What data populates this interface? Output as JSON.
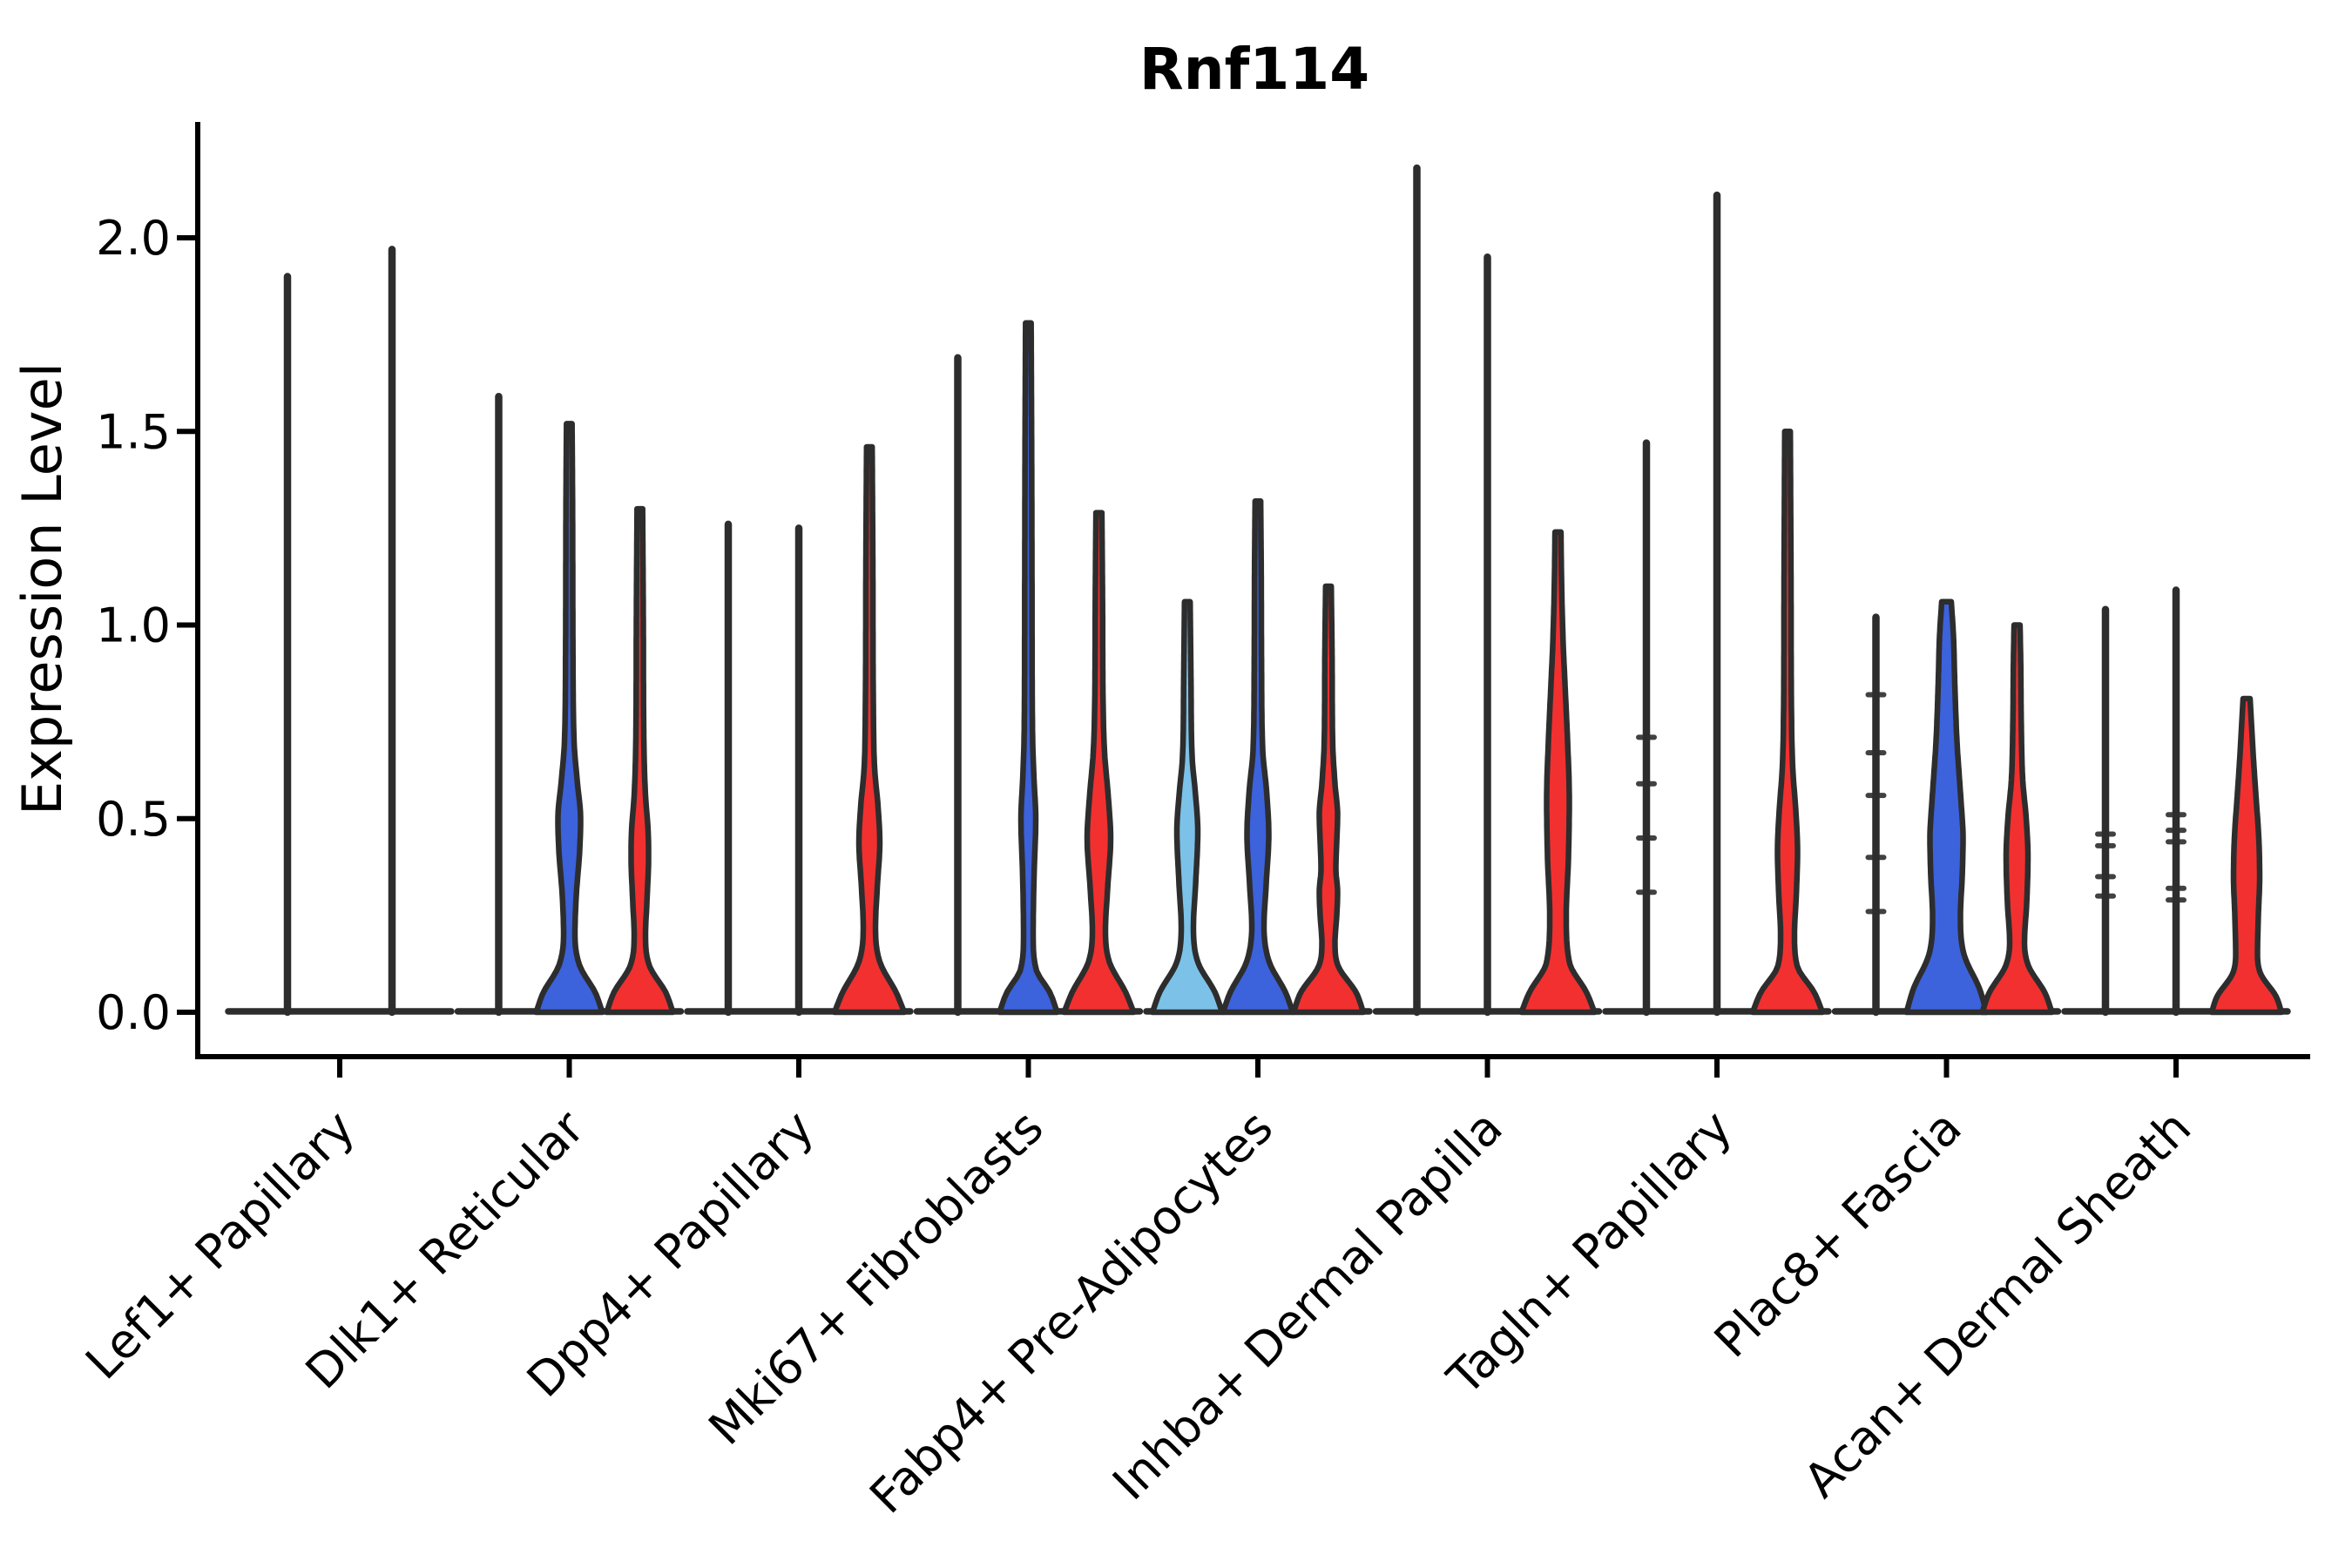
{
  "title": "Rnf114",
  "chart_data": {
    "type": "violin",
    "title": "Rnf114",
    "xlabel": "",
    "ylabel": "Expression Level",
    "ylim": [
      0,
      2.3
    ],
    "yticks": [
      0.0,
      0.5,
      1.0,
      1.5,
      2.0
    ],
    "ytick_labels": [
      "0.0",
      "0.5",
      "1.0",
      "1.5",
      "2.0"
    ],
    "grid": false,
    "legend_position": "none",
    "categories": [
      "Lef1+ Papillary",
      "Dlk1+ Reticular",
      "Dpp4+ Papillary",
      "Mki67+ Fibroblasts",
      "Fabp4+ Pre-Adipocytes",
      "Inhba+ Dermal Papilla",
      "Tagln+ Papillary",
      "Plac8+ Fascia",
      "Acan+ Dermal Sheath"
    ],
    "palette": {
      "light_blue": "#7CC2E8",
      "blue": "#3C62DC",
      "red": "#F23030",
      "outline": "#2D2D2D",
      "axis": "#000000",
      "text": "#000000"
    },
    "groups": [
      {
        "category": "Lef1+ Papillary",
        "violins": [
          {
            "kind": "spike",
            "max": 1.9,
            "marks": []
          },
          {
            "kind": "spike",
            "max": 1.97,
            "marks": []
          }
        ]
      },
      {
        "category": "Dlk1+ Reticular",
        "violins": [
          {
            "kind": "spike",
            "max": 1.59,
            "marks": []
          },
          {
            "kind": "body",
            "color": "blue",
            "max": 1.52,
            "profile": [
              [
                0,
                38
              ],
              [
                0.05,
                30
              ],
              [
                0.12,
                12
              ],
              [
                0.2,
                6.5
              ],
              [
                0.3,
                8
              ],
              [
                0.42,
                12
              ],
              [
                0.5,
                13
              ],
              [
                0.6,
                9
              ],
              [
                0.7,
                5.5
              ],
              [
                0.95,
                4.2
              ],
              [
                1.3,
                3.8
              ],
              [
                1.52,
                3.2
              ]
            ]
          },
          {
            "kind": "body",
            "color": "red",
            "max": 1.3,
            "profile": [
              [
                0,
                38
              ],
              [
                0.05,
                30
              ],
              [
                0.12,
                11
              ],
              [
                0.2,
                6.5
              ],
              [
                0.28,
                8
              ],
              [
                0.4,
                10
              ],
              [
                0.47,
                9.5
              ],
              [
                0.56,
                6.5
              ],
              [
                0.7,
                4.6
              ],
              [
                1.0,
                4
              ],
              [
                1.3,
                3.2
              ]
            ]
          }
        ]
      },
      {
        "category": "Dpp4+ Papillary",
        "violins": [
          {
            "kind": "spike",
            "max": 1.26,
            "marks": []
          },
          {
            "kind": "spike",
            "max": 1.25,
            "marks": []
          },
          {
            "kind": "body",
            "color": "red",
            "max": 1.46,
            "profile": [
              [
                0,
                40
              ],
              [
                0.05,
                31
              ],
              [
                0.13,
                12
              ],
              [
                0.22,
                7
              ],
              [
                0.32,
                9
              ],
              [
                0.44,
                12
              ],
              [
                0.53,
                10
              ],
              [
                0.63,
                6
              ],
              [
                0.78,
                4.6
              ],
              [
                1.15,
                4
              ],
              [
                1.46,
                3.2
              ]
            ]
          }
        ]
      },
      {
        "category": "Mki67+ Fibroblasts",
        "violins": [
          {
            "kind": "spike",
            "max": 1.69,
            "marks": []
          },
          {
            "kind": "body",
            "color": "blue",
            "max": 1.78,
            "profile": [
              [
                0,
                33
              ],
              [
                0.05,
                25
              ],
              [
                0.11,
                9
              ],
              [
                0.2,
                5.5
              ],
              [
                0.35,
                6.5
              ],
              [
                0.5,
                8.5
              ],
              [
                0.6,
                6.5
              ],
              [
                0.72,
                4.8
              ],
              [
                1.05,
                4.2
              ],
              [
                1.45,
                3.8
              ],
              [
                1.78,
                3.2
              ]
            ]
          },
          {
            "kind": "body",
            "color": "red",
            "max": 1.29,
            "profile": [
              [
                0,
                40
              ],
              [
                0.05,
                31
              ],
              [
                0.13,
                12
              ],
              [
                0.21,
                7.5
              ],
              [
                0.32,
                10
              ],
              [
                0.45,
                13.5
              ],
              [
                0.55,
                11
              ],
              [
                0.67,
                6.5
              ],
              [
                0.8,
                4.8
              ],
              [
                1.05,
                4.2
              ],
              [
                1.29,
                3.4
              ]
            ]
          }
        ]
      },
      {
        "category": "Fabp4+ Pre-Adipocytes",
        "violins": [
          {
            "kind": "body",
            "color": "light_blue",
            "max": 1.06,
            "profile": [
              [
                0,
                40
              ],
              [
                0.05,
                32
              ],
              [
                0.13,
                12
              ],
              [
                0.22,
                7
              ],
              [
                0.33,
                9.5
              ],
              [
                0.47,
                12
              ],
              [
                0.56,
                9.5
              ],
              [
                0.66,
                5.5
              ],
              [
                0.85,
                4.2
              ],
              [
                1.06,
                3.2
              ]
            ]
          },
          {
            "kind": "body",
            "color": "blue",
            "max": 1.32,
            "profile": [
              [
                0,
                40
              ],
              [
                0.05,
                32
              ],
              [
                0.13,
                13
              ],
              [
                0.22,
                7
              ],
              [
                0.33,
                9.5
              ],
              [
                0.46,
                12.5
              ],
              [
                0.57,
                10
              ],
              [
                0.68,
                5.5
              ],
              [
                0.9,
                4.2
              ],
              [
                1.15,
                3.8
              ],
              [
                1.32,
                3.2
              ]
            ]
          },
          {
            "kind": "body",
            "color": "red",
            "max": 1.1,
            "profile": [
              [
                0,
                40
              ],
              [
                0.05,
                32
              ],
              [
                0.12,
                11
              ],
              [
                0.18,
                7.5
              ],
              [
                0.25,
                9.5
              ],
              [
                0.31,
                10.5
              ],
              [
                0.37,
                8.5
              ],
              [
                0.44,
                9.5
              ],
              [
                0.51,
                10.5
              ],
              [
                0.59,
                7.5
              ],
              [
                0.7,
                4.8
              ],
              [
                0.9,
                4.2
              ],
              [
                1.1,
                3.2
              ]
            ]
          }
        ]
      },
      {
        "category": "Inhba+ Dermal Papilla",
        "violins": [
          {
            "kind": "spike",
            "max": 2.18,
            "marks": []
          },
          {
            "kind": "spike",
            "max": 1.95,
            "marks": []
          },
          {
            "kind": "body",
            "color": "red",
            "max": 1.24,
            "profile": [
              [
                0,
                42
              ],
              [
                0.05,
                33
              ],
              [
                0.13,
                13
              ],
              [
                0.25,
                9.5
              ],
              [
                0.4,
                12
              ],
              [
                0.55,
                13
              ],
              [
                0.7,
                11
              ],
              [
                0.85,
                8
              ],
              [
                0.95,
                6
              ],
              [
                1.1,
                4.2
              ],
              [
                1.24,
                3.4
              ]
            ]
          }
        ]
      },
      {
        "category": "Tagln+ Papillary",
        "violins": [
          {
            "kind": "spike",
            "max": 1.47,
            "marks": [
              0.71,
              0.59,
              0.45,
              0.31
            ]
          },
          {
            "kind": "spike",
            "max": 2.11,
            "marks": []
          },
          {
            "kind": "body",
            "color": "red",
            "max": 1.5,
            "profile": [
              [
                0,
                40
              ],
              [
                0.05,
                31
              ],
              [
                0.12,
                11
              ],
              [
                0.2,
                8
              ],
              [
                0.3,
                10
              ],
              [
                0.42,
                11.5
              ],
              [
                0.52,
                9.5
              ],
              [
                0.63,
                6
              ],
              [
                0.76,
                4.6
              ],
              [
                1.1,
                4
              ],
              [
                1.5,
                3.2
              ]
            ]
          }
        ]
      },
      {
        "category": "Plac8+ Fascia",
        "violins": [
          {
            "kind": "spike",
            "max": 1.02,
            "marks": [
              0.82,
              0.67,
              0.56,
              0.4,
              0.26
            ]
          },
          {
            "kind": "body",
            "color": "blue",
            "max": 1.06,
            "profile": [
              [
                0,
                46
              ],
              [
                0.06,
                38
              ],
              [
                0.15,
                20
              ],
              [
                0.25,
                16
              ],
              [
                0.35,
                18
              ],
              [
                0.45,
                19
              ],
              [
                0.55,
                16.5
              ],
              [
                0.7,
                12
              ],
              [
                0.85,
                9.5
              ],
              [
                0.97,
                8
              ],
              [
                1.06,
                5.5
              ]
            ]
          },
          {
            "kind": "body",
            "color": "red",
            "max": 1.0,
            "profile": [
              [
                0,
                40
              ],
              [
                0.05,
                32
              ],
              [
                0.12,
                13
              ],
              [
                0.18,
                8.5
              ],
              [
                0.28,
                11
              ],
              [
                0.4,
                12.5
              ],
              [
                0.5,
                10.5
              ],
              [
                0.6,
                6.5
              ],
              [
                0.75,
                4.8
              ],
              [
                0.9,
                4.2
              ],
              [
                1.0,
                3.4
              ]
            ]
          }
        ]
      },
      {
        "category": "Acan+ Dermal Sheath",
        "violins": [
          {
            "kind": "spike",
            "max": 1.04,
            "marks": [
              0.46,
              0.43,
              0.35,
              0.3
            ]
          },
          {
            "kind": "spike",
            "max": 1.09,
            "marks": [
              0.51,
              0.47,
              0.44,
              0.32,
              0.29
            ]
          },
          {
            "kind": "body",
            "color": "red",
            "max": 0.81,
            "profile": [
              [
                0,
                40
              ],
              [
                0.04,
                34
              ],
              [
                0.1,
                16
              ],
              [
                0.15,
                12.5
              ],
              [
                0.25,
                13.5
              ],
              [
                0.35,
                15
              ],
              [
                0.45,
                14
              ],
              [
                0.55,
                11
              ],
              [
                0.65,
                8
              ],
              [
                0.73,
                6
              ],
              [
                0.81,
                4
              ]
            ]
          }
        ]
      }
    ]
  }
}
